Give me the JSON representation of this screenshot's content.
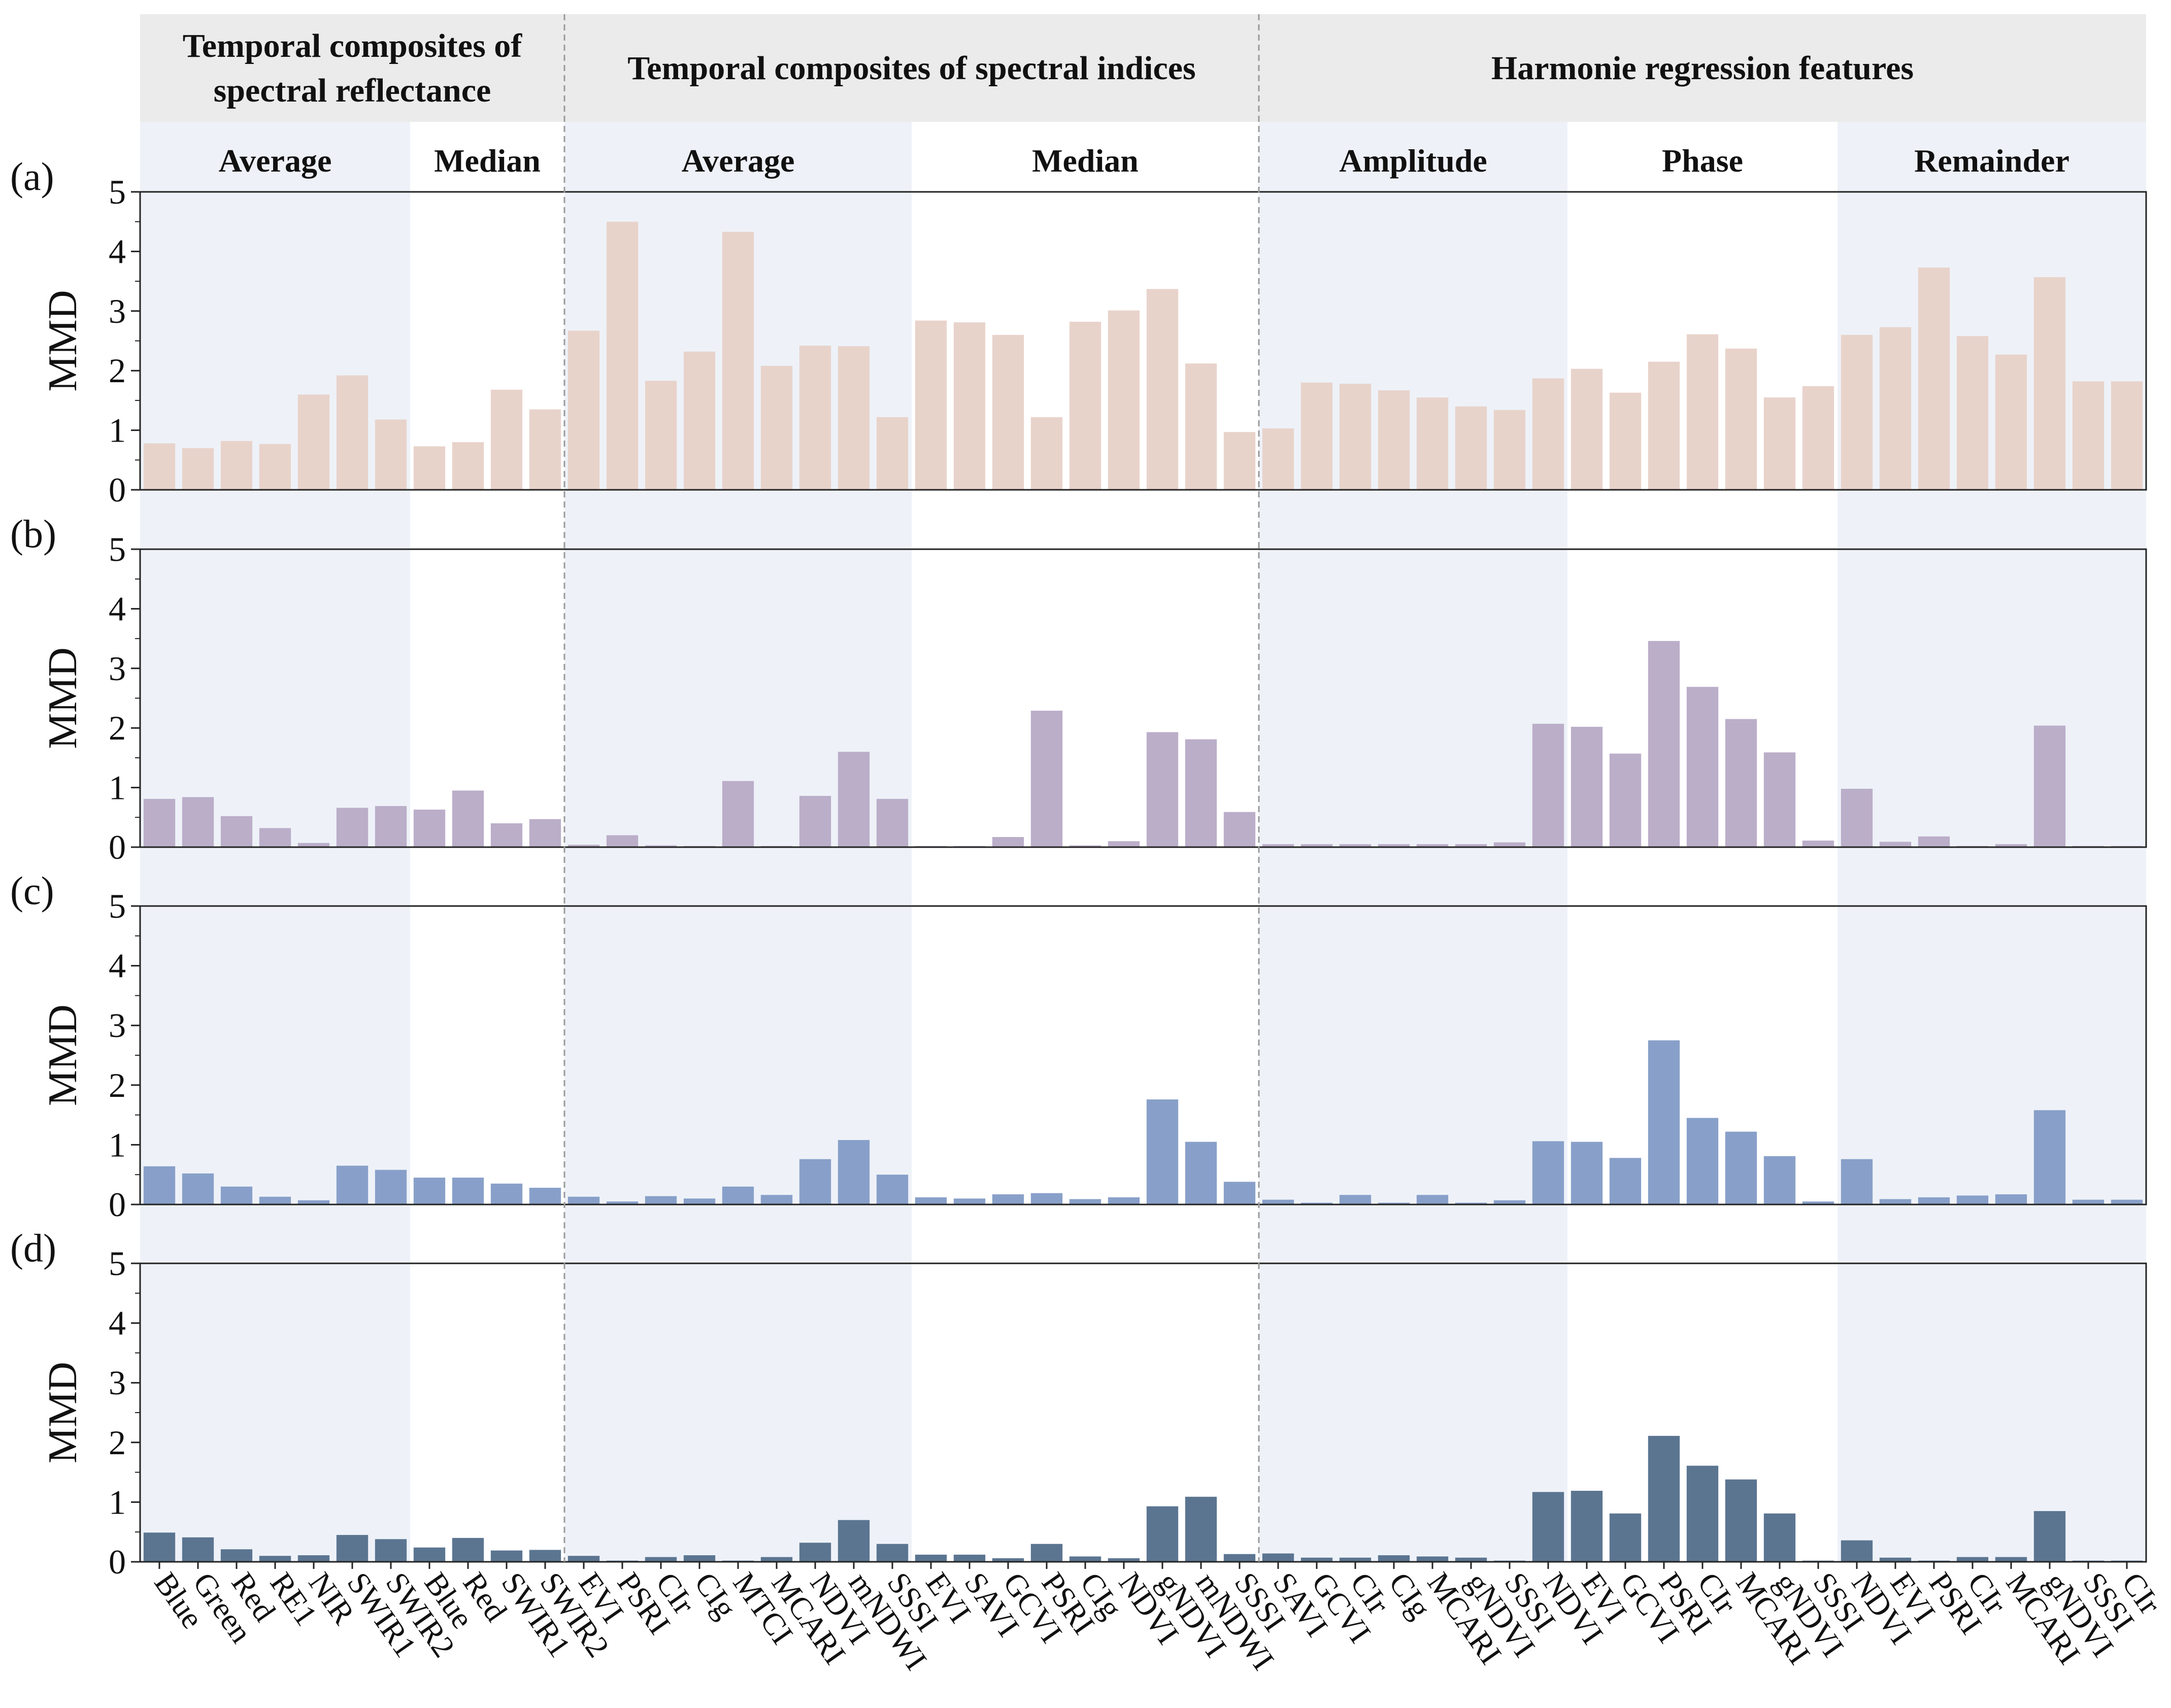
{
  "chart_data": {
    "type": "bar",
    "ylabel": "MMD",
    "ylim": [
      0,
      5
    ],
    "yticks": [
      0,
      1,
      2,
      3,
      4,
      5
    ],
    "group_headers": [
      {
        "label_lines": [
          "Temporal composites of",
          "spectral reflectance"
        ],
        "start": 0,
        "end": 11
      },
      {
        "label_lines": [
          "Temporal composites of spectral indices"
        ],
        "start": 11,
        "end": 29
      },
      {
        "label_lines": [
          "Harmonie regression features"
        ],
        "start": 29,
        "end": 52
      }
    ],
    "sub_headers": [
      {
        "label": "Average",
        "start": 0,
        "end": 7,
        "shaded": true
      },
      {
        "label": "Median",
        "start": 7,
        "end": 11,
        "shaded": false
      },
      {
        "label": "Average",
        "start": 11,
        "end": 20,
        "shaded": true
      },
      {
        "label": "Median",
        "start": 20,
        "end": 29,
        "shaded": false
      },
      {
        "label": "Amplitude",
        "start": 29,
        "end": 37,
        "shaded": true
      },
      {
        "label": "Phase",
        "start": 37,
        "end": 44,
        "shaded": false
      },
      {
        "label": "Remainder",
        "start": 44,
        "end": 52,
        "shaded": true
      }
    ],
    "categories": [
      "Blue",
      "Green",
      "Red",
      "RE1",
      "NIR",
      "SWIR1",
      "SWIR2",
      "Blue",
      "Red",
      "SWIR1",
      "SWIR2",
      "EVI",
      "PSRI",
      "CIr",
      "CIg",
      "MTCI",
      "MCARI",
      "NDVI",
      "mNDWI",
      "SSSI",
      "EVI",
      "SAVI",
      "GCVI",
      "PSRI",
      "CIg",
      "NDVI",
      "gNDVI",
      "mNDWI",
      "SSSI",
      "SAVI",
      "GCVI",
      "CIr",
      "CIg",
      "MCARI",
      "gNDVI",
      "SSSI",
      "NDVI",
      "EVI",
      "GCVI",
      "PSRI",
      "CIr",
      "MCARI",
      "gNDVI",
      "SSSI",
      "NDVI",
      "EVI",
      "PSRI",
      "CIr",
      "MCARI",
      "gNDVI",
      "SSSI",
      "CIr"
    ],
    "series": [
      {
        "name": "(a)",
        "color": "#e8d3cb",
        "values": [
          0.78,
          0.7,
          0.82,
          0.77,
          1.6,
          1.92,
          1.18,
          0.73,
          0.8,
          1.68,
          1.35,
          2.67,
          4.5,
          1.83,
          2.32,
          4.33,
          2.08,
          2.42,
          2.41,
          1.22,
          2.84,
          2.81,
          2.6,
          1.22,
          2.82,
          3.01,
          3.37,
          2.12,
          0.97,
          1.03,
          1.8,
          1.78,
          1.67,
          1.55,
          1.4,
          1.34,
          1.87,
          2.03,
          1.63,
          2.15,
          2.61,
          2.37,
          1.55,
          1.74,
          2.6,
          2.73,
          3.73,
          2.58,
          2.27,
          3.57,
          1.82,
          1.82
        ]
      },
      {
        "name": "(b)",
        "color": "#bbaec9",
        "values": [
          0.81,
          0.84,
          0.52,
          0.32,
          0.07,
          0.66,
          0.69,
          0.63,
          0.95,
          0.4,
          0.47,
          0.04,
          0.2,
          0.03,
          0.02,
          1.11,
          0.02,
          0.86,
          1.6,
          0.81,
          0.02,
          0.02,
          0.17,
          2.29,
          0.03,
          0.1,
          1.93,
          1.81,
          0.59,
          0.05,
          0.05,
          0.05,
          0.05,
          0.05,
          0.05,
          0.08,
          2.07,
          2.02,
          1.57,
          3.46,
          2.69,
          2.15,
          1.59,
          0.11,
          0.98,
          0.09,
          0.18,
          0.02,
          0.05,
          2.04,
          0.02,
          0.02
        ]
      },
      {
        "name": "(c)",
        "color": "#88a0c9",
        "values": [
          0.64,
          0.52,
          0.3,
          0.13,
          0.07,
          0.65,
          0.58,
          0.45,
          0.45,
          0.35,
          0.28,
          0.13,
          0.05,
          0.14,
          0.1,
          0.3,
          0.16,
          0.76,
          1.08,
          0.5,
          0.12,
          0.1,
          0.17,
          0.19,
          0.09,
          0.12,
          1.76,
          1.05,
          0.38,
          0.08,
          0.03,
          0.16,
          0.03,
          0.16,
          0.03,
          0.07,
          1.06,
          1.05,
          0.78,
          2.75,
          1.45,
          1.22,
          0.81,
          0.05,
          0.76,
          0.09,
          0.12,
          0.15,
          0.17,
          1.58,
          0.08,
          0.08
        ]
      },
      {
        "name": "(d)",
        "color": "#5b7591",
        "values": [
          0.49,
          0.41,
          0.21,
          0.1,
          0.11,
          0.45,
          0.38,
          0.24,
          0.4,
          0.19,
          0.2,
          0.1,
          0.02,
          0.08,
          0.11,
          0.02,
          0.08,
          0.32,
          0.7,
          0.3,
          0.12,
          0.12,
          0.06,
          0.3,
          0.09,
          0.06,
          0.93,
          1.09,
          0.13,
          0.14,
          0.07,
          0.07,
          0.11,
          0.09,
          0.07,
          0.02,
          1.17,
          1.19,
          0.81,
          2.11,
          1.61,
          1.38,
          0.81,
          0.02,
          0.36,
          0.07,
          0.02,
          0.08,
          0.08,
          0.85,
          0.02,
          0.02
        ]
      }
    ]
  }
}
